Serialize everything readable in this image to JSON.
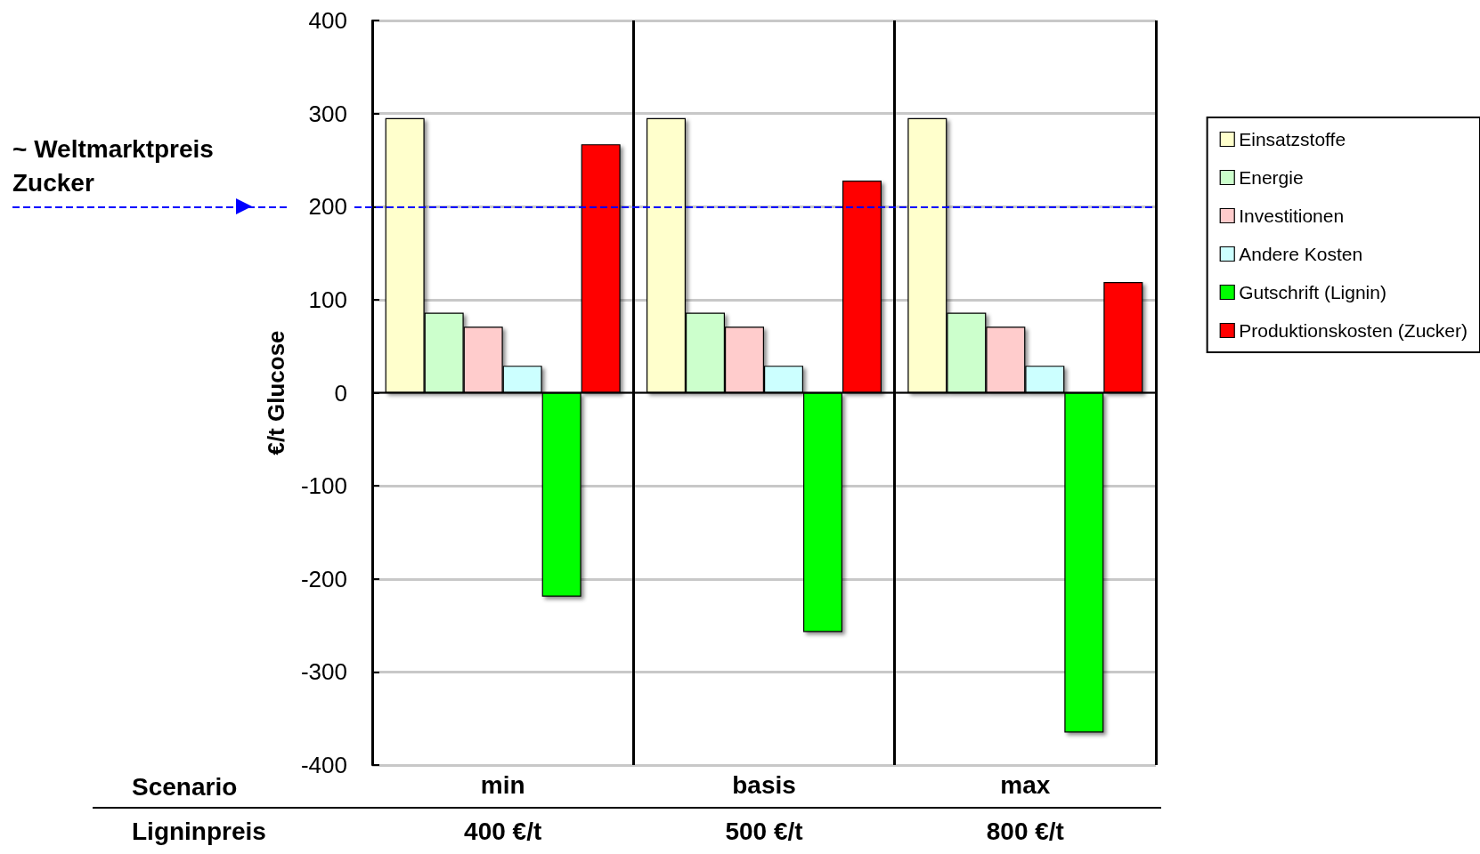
{
  "chart_data": {
    "type": "bar",
    "ylabel": "€/t Glucose",
    "categories": [
      "min",
      "basis",
      "max"
    ],
    "series": [
      {
        "name": "Einsatzstoffe",
        "color": "#ffffcc",
        "values": [
          295,
          295,
          295
        ]
      },
      {
        "name": "Energie",
        "color": "#ccffcc",
        "values": [
          86,
          86,
          86
        ]
      },
      {
        "name": "Investitionen",
        "color": "#ffcccc",
        "values": [
          71,
          71,
          71
        ]
      },
      {
        "name": "Andere Kosten",
        "color": "#ccffff",
        "values": [
          29,
          29,
          29
        ]
      },
      {
        "name": "Gutschrift (Lignin)",
        "color": "#00ff00",
        "values": [
          -219,
          -257,
          -365
        ]
      },
      {
        "name": "Produktionskosten (Zucker)",
        "color": "#ff0000",
        "values": [
          267,
          228,
          119
        ]
      }
    ],
    "ylim": [
      -400,
      400
    ],
    "yticks": [
      -400,
      -300,
      -200,
      -100,
      0,
      100,
      200,
      300,
      400
    ],
    "grid": "y",
    "legend": "top right",
    "ref_lines": [
      {
        "axis": "y",
        "value": 200,
        "label": "~ Weltmarktpreis Zucker",
        "color": "#0000ff",
        "line_style": "dashed"
      }
    ],
    "annotations": [
      "Scenario",
      "Ligninpreis",
      "400 €/t",
      "500 €/t",
      "800 €/t"
    ]
  }
}
